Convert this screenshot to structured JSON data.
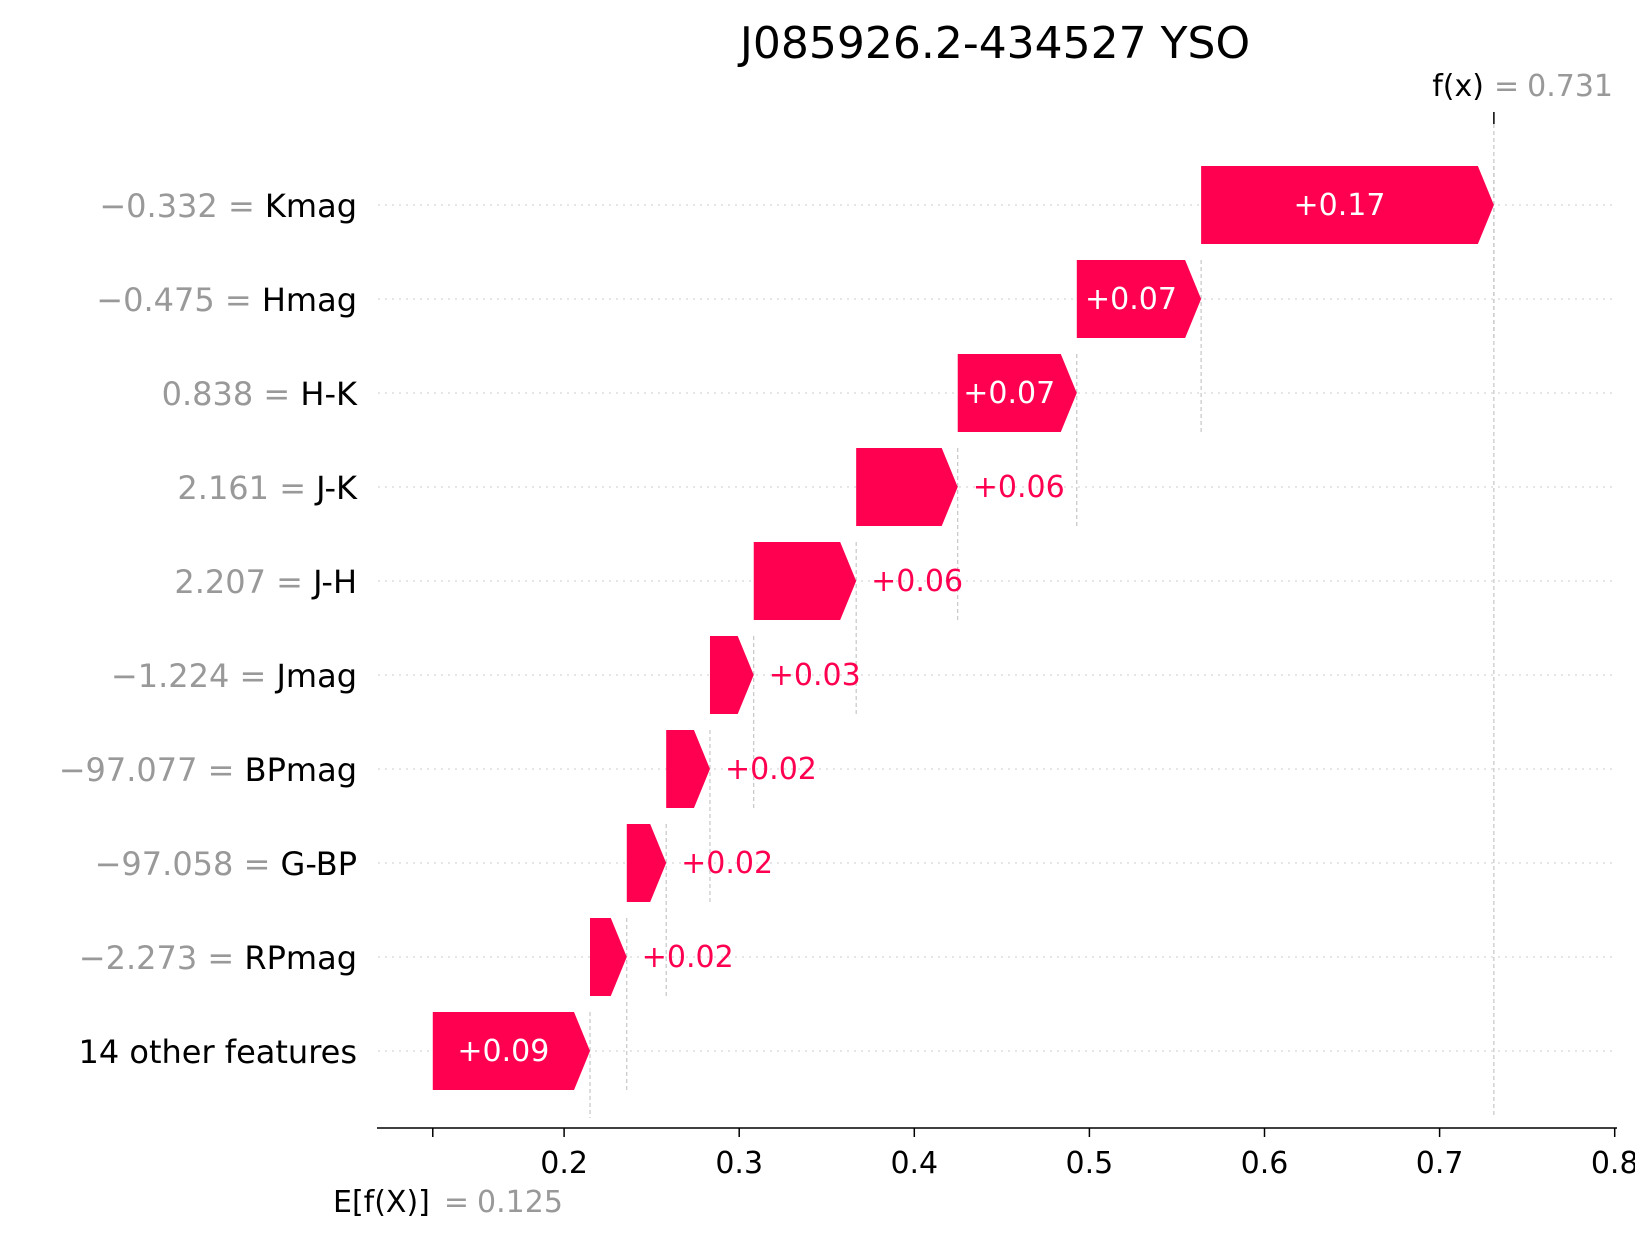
{
  "chart_data": {
    "type": "waterfall",
    "title": "J085926.2-434527 YSO",
    "base_value": 0.125,
    "output_value": 0.731,
    "base_label": "E[f(X)]",
    "output_label": "f(x)",
    "base_value_text": "0.125",
    "output_value_text": "0.731",
    "xlim": [
      0.1,
      0.825
    ],
    "xticks": [
      0.2,
      0.3,
      0.4,
      0.5,
      0.6,
      0.7,
      0.8
    ],
    "xtick_labels": [
      "0.2",
      "0.3",
      "0.4",
      "0.5",
      "0.6",
      "0.7",
      "0.8"
    ],
    "features": [
      {
        "value": "−0.332",
        "name": "Kmag",
        "start": 0.5638,
        "contribution": 0.1672,
        "label": "+0.17"
      },
      {
        "value": "−0.475",
        "name": "Hmag",
        "start": 0.4928,
        "contribution": 0.071,
        "label": "+0.07"
      },
      {
        "value": "0.838",
        "name": "H-K",
        "start": 0.4248,
        "contribution": 0.068,
        "label": "+0.07"
      },
      {
        "value": "2.161",
        "name": "J-K",
        "start": 0.3668,
        "contribution": 0.058,
        "label": "+0.06"
      },
      {
        "value": "2.207",
        "name": "J-H",
        "start": 0.3083,
        "contribution": 0.0585,
        "label": "+0.06"
      },
      {
        "value": "−1.224",
        "name": "Jmag",
        "start": 0.2833,
        "contribution": 0.025,
        "label": "+0.03"
      },
      {
        "value": "−97.077",
        "name": "BPmag",
        "start": 0.2583,
        "contribution": 0.025,
        "label": "+0.02"
      },
      {
        "value": "−97.058",
        "name": "G-BP",
        "start": 0.2358,
        "contribution": 0.0225,
        "label": "+0.02"
      },
      {
        "value": "−2.273",
        "name": "RPmag",
        "start": 0.2148,
        "contribution": 0.021,
        "label": "+0.02"
      },
      {
        "value": "",
        "name": "14 other features",
        "start": 0.125,
        "contribution": 0.0898,
        "label": "+0.09"
      }
    ],
    "colors": {
      "positive": "#ff0051",
      "value_text": "#999999",
      "label_text": "#000000",
      "guide_line": "#bbbbbb",
      "row_line": "#cccccc",
      "axis": "#000000"
    }
  }
}
